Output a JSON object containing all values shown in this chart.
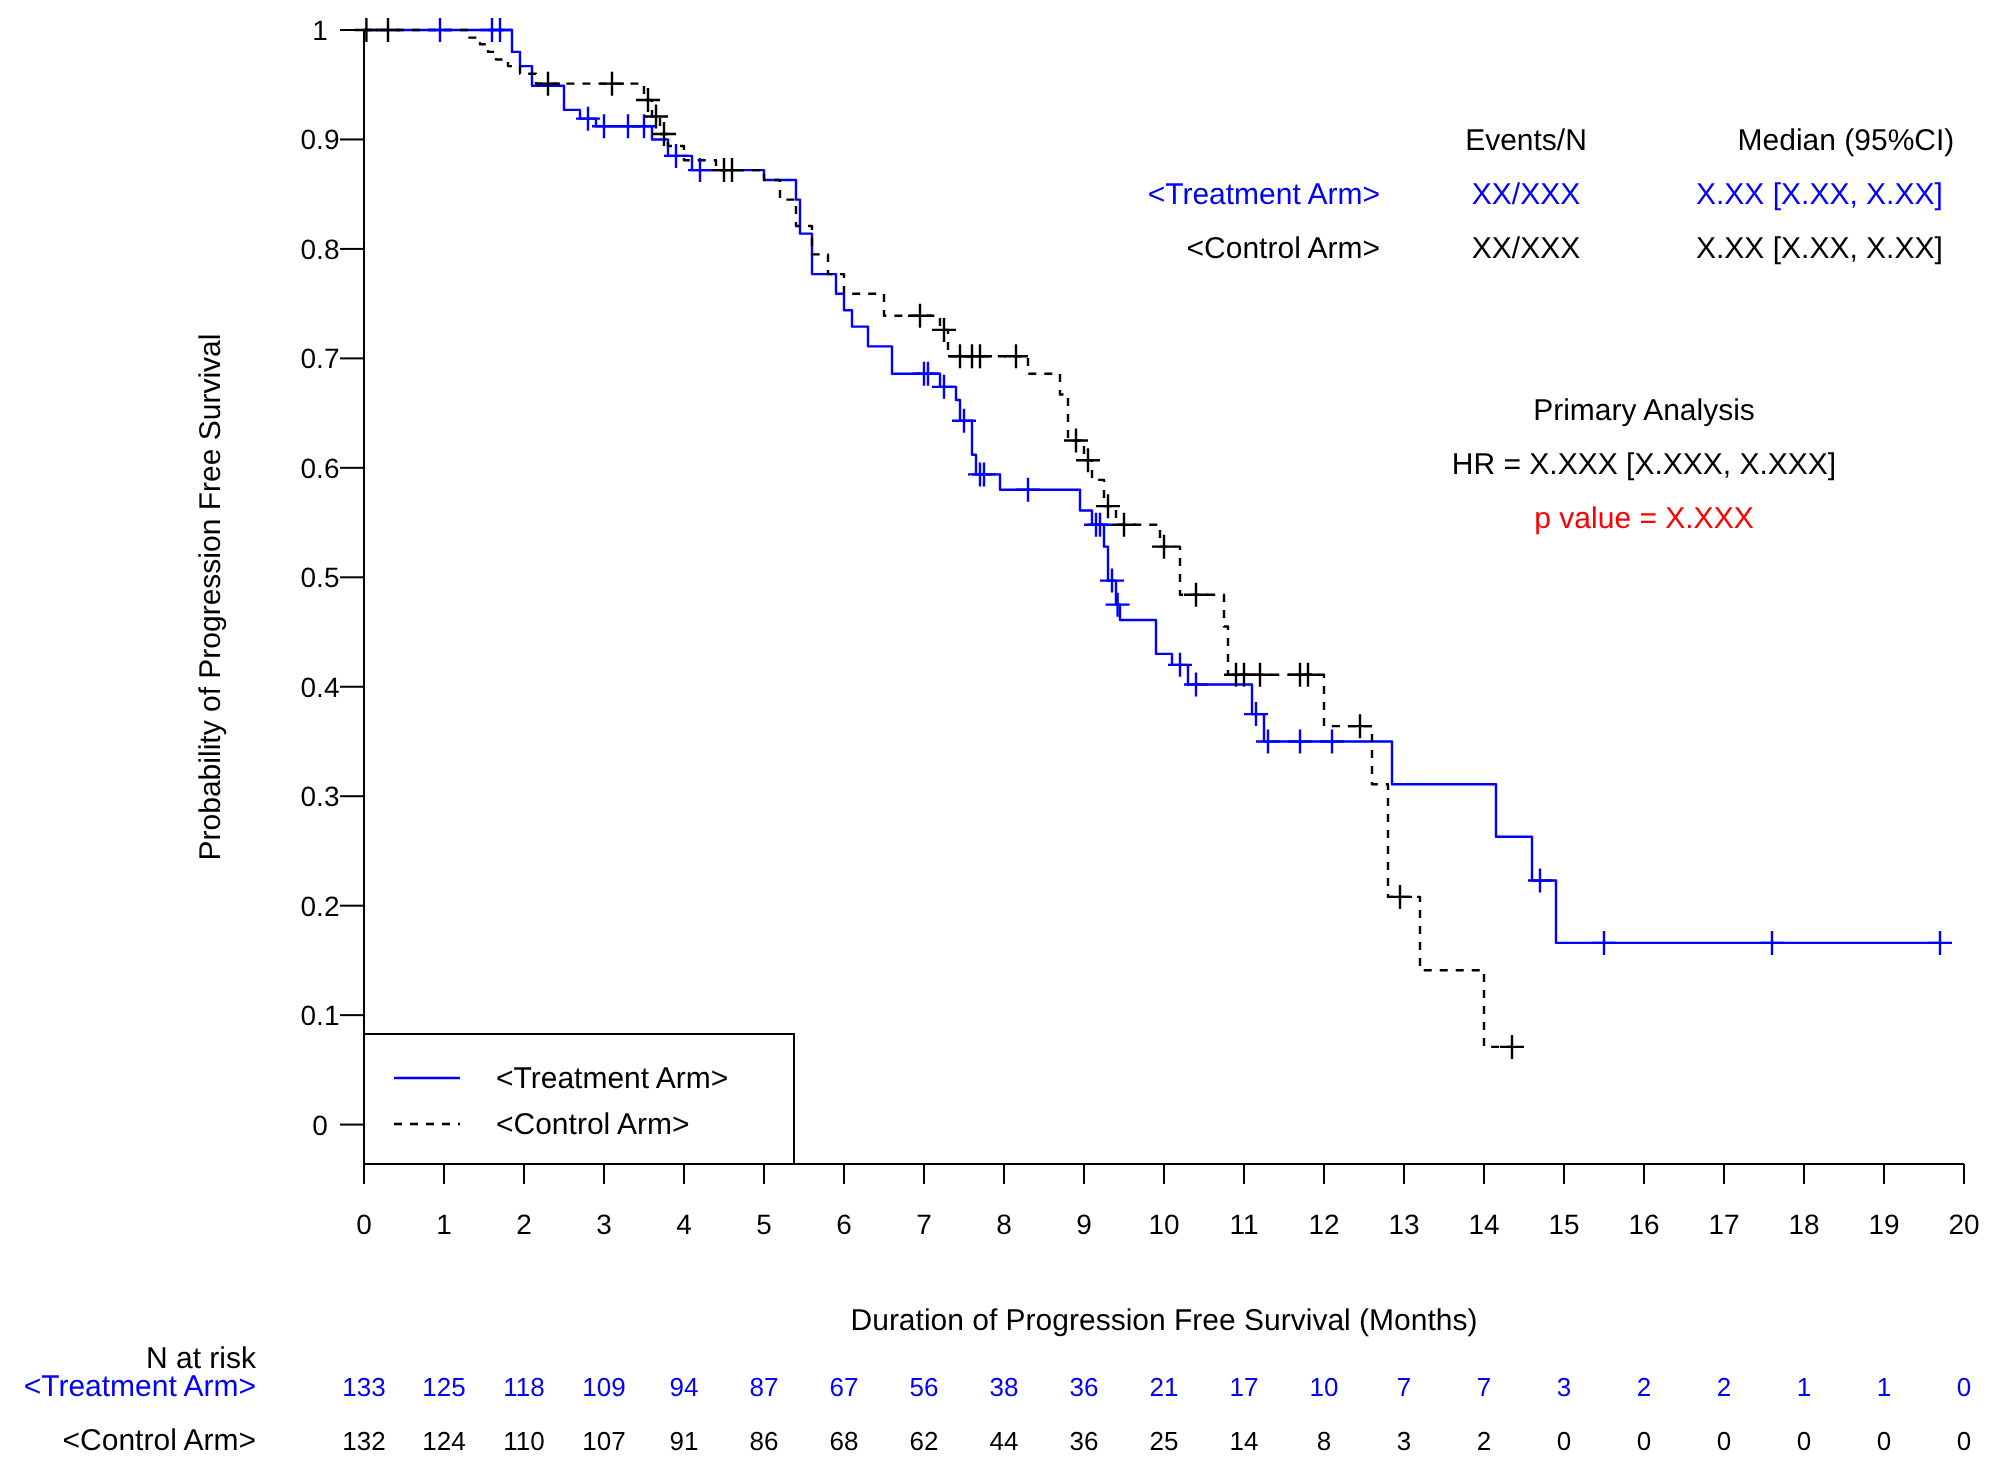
{
  "chart_data": {
    "type": "step",
    "xlabel": "Duration of Progression Free Survival (Months)",
    "ylabel": "Probability of Progression Free Survival",
    "xlim": [
      0,
      20
    ],
    "ylim": [
      -0.036,
      1
    ],
    "xticks": [
      0,
      1,
      2,
      3,
      4,
      5,
      6,
      7,
      8,
      9,
      10,
      11,
      12,
      13,
      14,
      15,
      16,
      17,
      18,
      19,
      20
    ],
    "yticks": [
      0,
      0.1,
      0.2,
      0.3,
      0.4,
      0.5,
      0.6,
      0.7,
      0.8,
      0.9,
      1
    ],
    "grid": false,
    "legend": "bottom left",
    "series": [
      {
        "name": "<Treatment Arm>",
        "color": "#0000ff",
        "line_style": "solid",
        "marker": "none",
        "x": [
          0,
          1.85,
          1.95,
          2.1,
          2.5,
          2.7,
          2.9,
          3.6,
          3.8,
          4.1,
          5.0,
          5.4,
          5.45,
          5.6,
          5.9,
          6.0,
          6.1,
          6.3,
          6.6,
          7.2,
          7.4,
          7.45,
          7.6,
          7.65,
          7.95,
          8.95,
          9.1,
          9.25,
          9.3,
          9.4,
          9.45,
          9.9,
          10.1,
          10.3,
          11.1,
          11.25,
          12.85,
          14.15,
          14.6,
          14.9,
          19.7
        ],
        "values": [
          1,
          0.98,
          0.967,
          0.949,
          0.927,
          0.919,
          0.912,
          0.9,
          0.885,
          0.872,
          0.863,
          0.845,
          0.814,
          0.777,
          0.759,
          0.744,
          0.729,
          0.711,
          0.686,
          0.674,
          0.662,
          0.643,
          0.612,
          0.594,
          0.58,
          0.561,
          0.548,
          0.528,
          0.497,
          0.475,
          0.461,
          0.43,
          0.42,
          0.402,
          0.375,
          0.35,
          0.311,
          0.263,
          0.223,
          0.166,
          0.166
        ]
      },
      {
        "name": "<Control Arm>",
        "color": "#000000",
        "line_style": "dashed",
        "marker": "none",
        "x": [
          0,
          1.3,
          1.45,
          1.55,
          1.65,
          1.8,
          1.95,
          2.15,
          3.5,
          3.6,
          3.7,
          3.8,
          4.0,
          4.4,
          5.0,
          5.2,
          5.4,
          5.6,
          5.8,
          6.0,
          6.5,
          7.2,
          7.3,
          8.3,
          8.7,
          8.8,
          9.0,
          9.1,
          9.25,
          9.4,
          9.95,
          10.2,
          10.75,
          10.8,
          12.0,
          12.6,
          12.8,
          13.2,
          14.0,
          14.35
        ],
        "values": [
          1,
          0.993,
          0.987,
          0.98,
          0.973,
          0.967,
          0.96,
          0.951,
          0.936,
          0.921,
          0.905,
          0.894,
          0.881,
          0.872,
          0.863,
          0.845,
          0.821,
          0.795,
          0.777,
          0.759,
          0.739,
          0.726,
          0.702,
          0.686,
          0.667,
          0.625,
          0.607,
          0.589,
          0.565,
          0.548,
          0.528,
          0.484,
          0.455,
          0.411,
          0.364,
          0.311,
          0.208,
          0.141,
          0.071,
          0.071
        ]
      },
      {
        "type": "scatter",
        "color": "#0000ff",
        "marker": "cross",
        "x": [
          0.95,
          1.6,
          1.7,
          2.8,
          3.0,
          3.3,
          3.5,
          3.9,
          4.2,
          7.0,
          7.05,
          7.25,
          7.5,
          7.7,
          7.75,
          8.3,
          9.15,
          9.2,
          9.35,
          9.42,
          10.2,
          10.4,
          11.15,
          11.3,
          11.7,
          12.1,
          14.7,
          15.5,
          17.6,
          19.7
        ],
        "values": [
          1,
          1,
          1,
          0.919,
          0.912,
          0.912,
          0.912,
          0.885,
          0.872,
          0.686,
          0.686,
          0.674,
          0.643,
          0.594,
          0.594,
          0.58,
          0.548,
          0.548,
          0.497,
          0.475,
          0.42,
          0.402,
          0.375,
          0.35,
          0.35,
          0.35,
          0.223,
          0.166,
          0.166,
          0.166
        ]
      },
      {
        "type": "scatter",
        "color": "#000000",
        "marker": "cross",
        "x": [
          0.03,
          0.3,
          2.3,
          3.1,
          3.55,
          3.65,
          3.75,
          4.5,
          4.6,
          6.95,
          7.25,
          7.45,
          7.6,
          7.7,
          8.15,
          8.9,
          9.05,
          9.3,
          9.5,
          10.0,
          10.4,
          10.9,
          11.0,
          11.2,
          11.7,
          11.8,
          12.45,
          12.95,
          14.35
        ],
        "values": [
          1,
          1,
          0.951,
          0.951,
          0.936,
          0.921,
          0.905,
          0.872,
          0.872,
          0.739,
          0.726,
          0.702,
          0.702,
          0.702,
          0.702,
          0.625,
          0.607,
          0.565,
          0.548,
          0.528,
          0.484,
          0.411,
          0.411,
          0.411,
          0.411,
          0.411,
          0.364,
          0.208,
          0.071
        ]
      }
    ],
    "annotations": [
      "Events/N",
      "Median (95%CI)",
      "<Treatment Arm>",
      "XX/XXX",
      "X.XX [X.XX, X.XX]",
      "<Control Arm>",
      "XX/XXX",
      "X.XX [X.XX, X.XX]",
      "Primary Analysis",
      "HR = X.XXX [X.XXX, X.XXX]",
      "p value = X.XXX",
      "N at risk",
      "<Treatment Arm>",
      "133 125 118 109 94 87 67 56 38 36 21 17 10 7 7 3 2 2 1 1 0",
      "<Control Arm>",
      "132 124 110 107 91 86 68 62 44 36 25 14 8 3 2 0 0 0 0 0 0"
    ]
  }
}
